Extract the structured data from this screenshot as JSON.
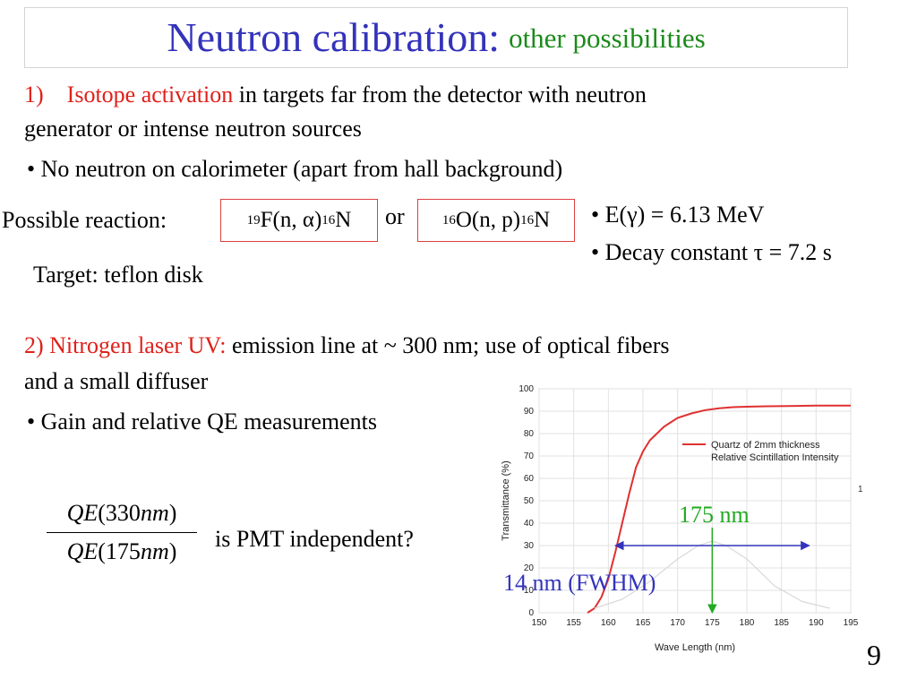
{
  "slide": {
    "title_main": "Neutron calibration:",
    "title_sub": "other possibilities",
    "item1_number": "1)",
    "item1_highlight": "Isotope activation",
    "item1_text": " in targets far from the detector with neutron",
    "item1_text2": "generator or intense neutron sources",
    "bullet1": "• No neutron on calorimeter (apart from hall background)",
    "reaction_label": "Possible reaction:",
    "reaction1": {
      "pre_mass": "19",
      "body": "F(n, α)",
      "post_mass": "16",
      "product": "N"
    },
    "reaction_or": "or",
    "reaction2": {
      "pre_mass": "16",
      "body": "O(n, p)",
      "post_mass": "16",
      "product": "N"
    },
    "energy_bullet": "• E(γ) = 6.13 MeV",
    "decay_bullet": "• Decay constant τ = 7.2 s",
    "target_text": "Target: teflon disk",
    "item2_highlight": "2) Nitrogen laser UV:",
    "item2_text": " emission line at ~ 300 nm; use of  optical fibers",
    "item2_text2": "and a small diffuser",
    "bullet2": "• Gain and relative QE measurements",
    "fraction": {
      "num_pre": "QE",
      "num_paren_open": "(330",
      "num_unit": "nm",
      "num_paren_close": ")",
      "den_pre": "QE",
      "den_paren_open": "(175",
      "den_unit": "nm",
      "den_paren_close": ")"
    },
    "question": "is PMT independent?",
    "annotation_peak": "175 nm",
    "annotation_fwhm": "14 nm (FWHM)",
    "page_number": "9"
  },
  "chart_data": {
    "type": "line",
    "xlabel": "Wave Length (nm)",
    "ylabel": "Transmittance (%)",
    "xlim": [
      150,
      195
    ],
    "ylim": [
      0,
      100
    ],
    "xticks": [
      150,
      155,
      160,
      165,
      170,
      175,
      180,
      185,
      190,
      195
    ],
    "yticks": [
      0,
      10,
      20,
      30,
      40,
      50,
      60,
      70,
      80,
      90,
      100
    ],
    "grid": true,
    "legend_position": "top-right",
    "right_axis_label": "1",
    "series": [
      {
        "name": "Quartz of 2mm thickness",
        "color": "#e03030",
        "style": "solid",
        "x": [
          157,
          158,
          159,
          160,
          161,
          162,
          163,
          164,
          165,
          166,
          167,
          168,
          169,
          170,
          172,
          174,
          176,
          178,
          180,
          183,
          186,
          190,
          195
        ],
        "y": [
          0,
          2,
          7,
          15,
          27,
          40,
          53,
          65,
          72,
          77,
          80,
          83,
          85,
          87,
          89,
          90.5,
          91.3,
          91.8,
          92,
          92.2,
          92.3,
          92.5,
          92.5
        ]
      },
      {
        "name": "Relative Scintillation Intensity",
        "color": "#d8d8d8",
        "style": "solid",
        "x": [
          158,
          162,
          166,
          170,
          173,
          175,
          177,
          180,
          184,
          188,
          192
        ],
        "y": [
          2,
          6,
          14,
          24,
          30,
          32,
          30,
          24,
          12,
          5,
          2
        ]
      }
    ]
  },
  "colors": {
    "title_blue": "#3333bb",
    "title_green": "#1a8a1a",
    "highlight_red": "#e0201a",
    "annotation_green": "#22aa22",
    "annotation_blue": "#3333bb"
  }
}
